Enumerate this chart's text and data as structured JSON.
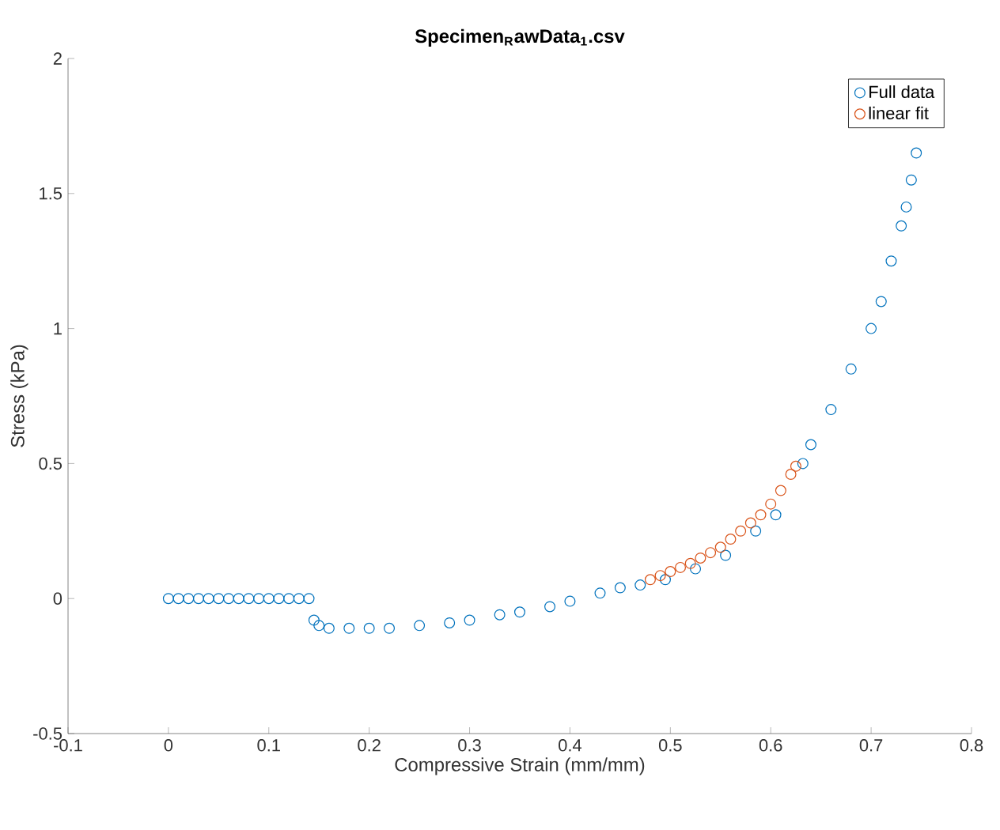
{
  "chart_data": {
    "type": "scatter",
    "title": "Specimen$_{R}$awData$_{1}$.csv",
    "xlabel": "Compressive Strain (mm/mm)",
    "ylabel": "Stress (kPa)",
    "xlim": [
      -0.1,
      0.8
    ],
    "xticks": [
      -0.1,
      0,
      0.1,
      0.2,
      0.3,
      0.4,
      0.5,
      0.6,
      0.7,
      0.8
    ],
    "ylim": [
      -0.5,
      2
    ],
    "yticks": [
      -0.5,
      0,
      0.5,
      1,
      1.5,
      2
    ],
    "grid": false,
    "legend": "top right",
    "marker": "circle",
    "series": [
      {
        "name": "Full data",
        "color": "#0072bd",
        "x": [
          0,
          0.01,
          0.02,
          0.03,
          0.04,
          0.05,
          0.06,
          0.07,
          0.08,
          0.09,
          0.1,
          0.11,
          0.12,
          0.13,
          0.14,
          0.145,
          0.15,
          0.16,
          0.18,
          0.2,
          0.22,
          0.25,
          0.28,
          0.3,
          0.33,
          0.35,
          0.38,
          0.4,
          0.43,
          0.45,
          0.47,
          0.495,
          0.525,
          0.555,
          0.585,
          0.605,
          0.632,
          0.64,
          0.66,
          0.68,
          0.7,
          0.71,
          0.72,
          0.73,
          0.735,
          0.74,
          0.745
        ],
        "values": [
          0,
          0,
          0,
          0,
          0,
          0,
          0,
          0,
          0,
          0,
          0,
          0,
          0,
          0,
          0,
          -0.08,
          -0.1,
          -0.11,
          -0.11,
          -0.11,
          -0.11,
          -0.1,
          -0.09,
          -0.08,
          -0.06,
          -0.05,
          -0.03,
          -0.01,
          0.02,
          0.04,
          0.05,
          0.07,
          0.11,
          0.16,
          0.25,
          0.31,
          0.5,
          0.57,
          0.7,
          0.85,
          1.0,
          1.1,
          1.25,
          1.38,
          1.45,
          1.55,
          1.65
        ]
      },
      {
        "name": "linear fit",
        "color": "#d95319",
        "x": [
          0.48,
          0.49,
          0.5,
          0.51,
          0.52,
          0.53,
          0.54,
          0.55,
          0.56,
          0.57,
          0.58,
          0.59,
          0.6,
          0.61,
          0.62,
          0.625
        ],
        "values": [
          0.07,
          0.085,
          0.1,
          0.115,
          0.13,
          0.15,
          0.17,
          0.19,
          0.22,
          0.25,
          0.28,
          0.31,
          0.35,
          0.4,
          0.46,
          0.49
        ]
      }
    ]
  }
}
